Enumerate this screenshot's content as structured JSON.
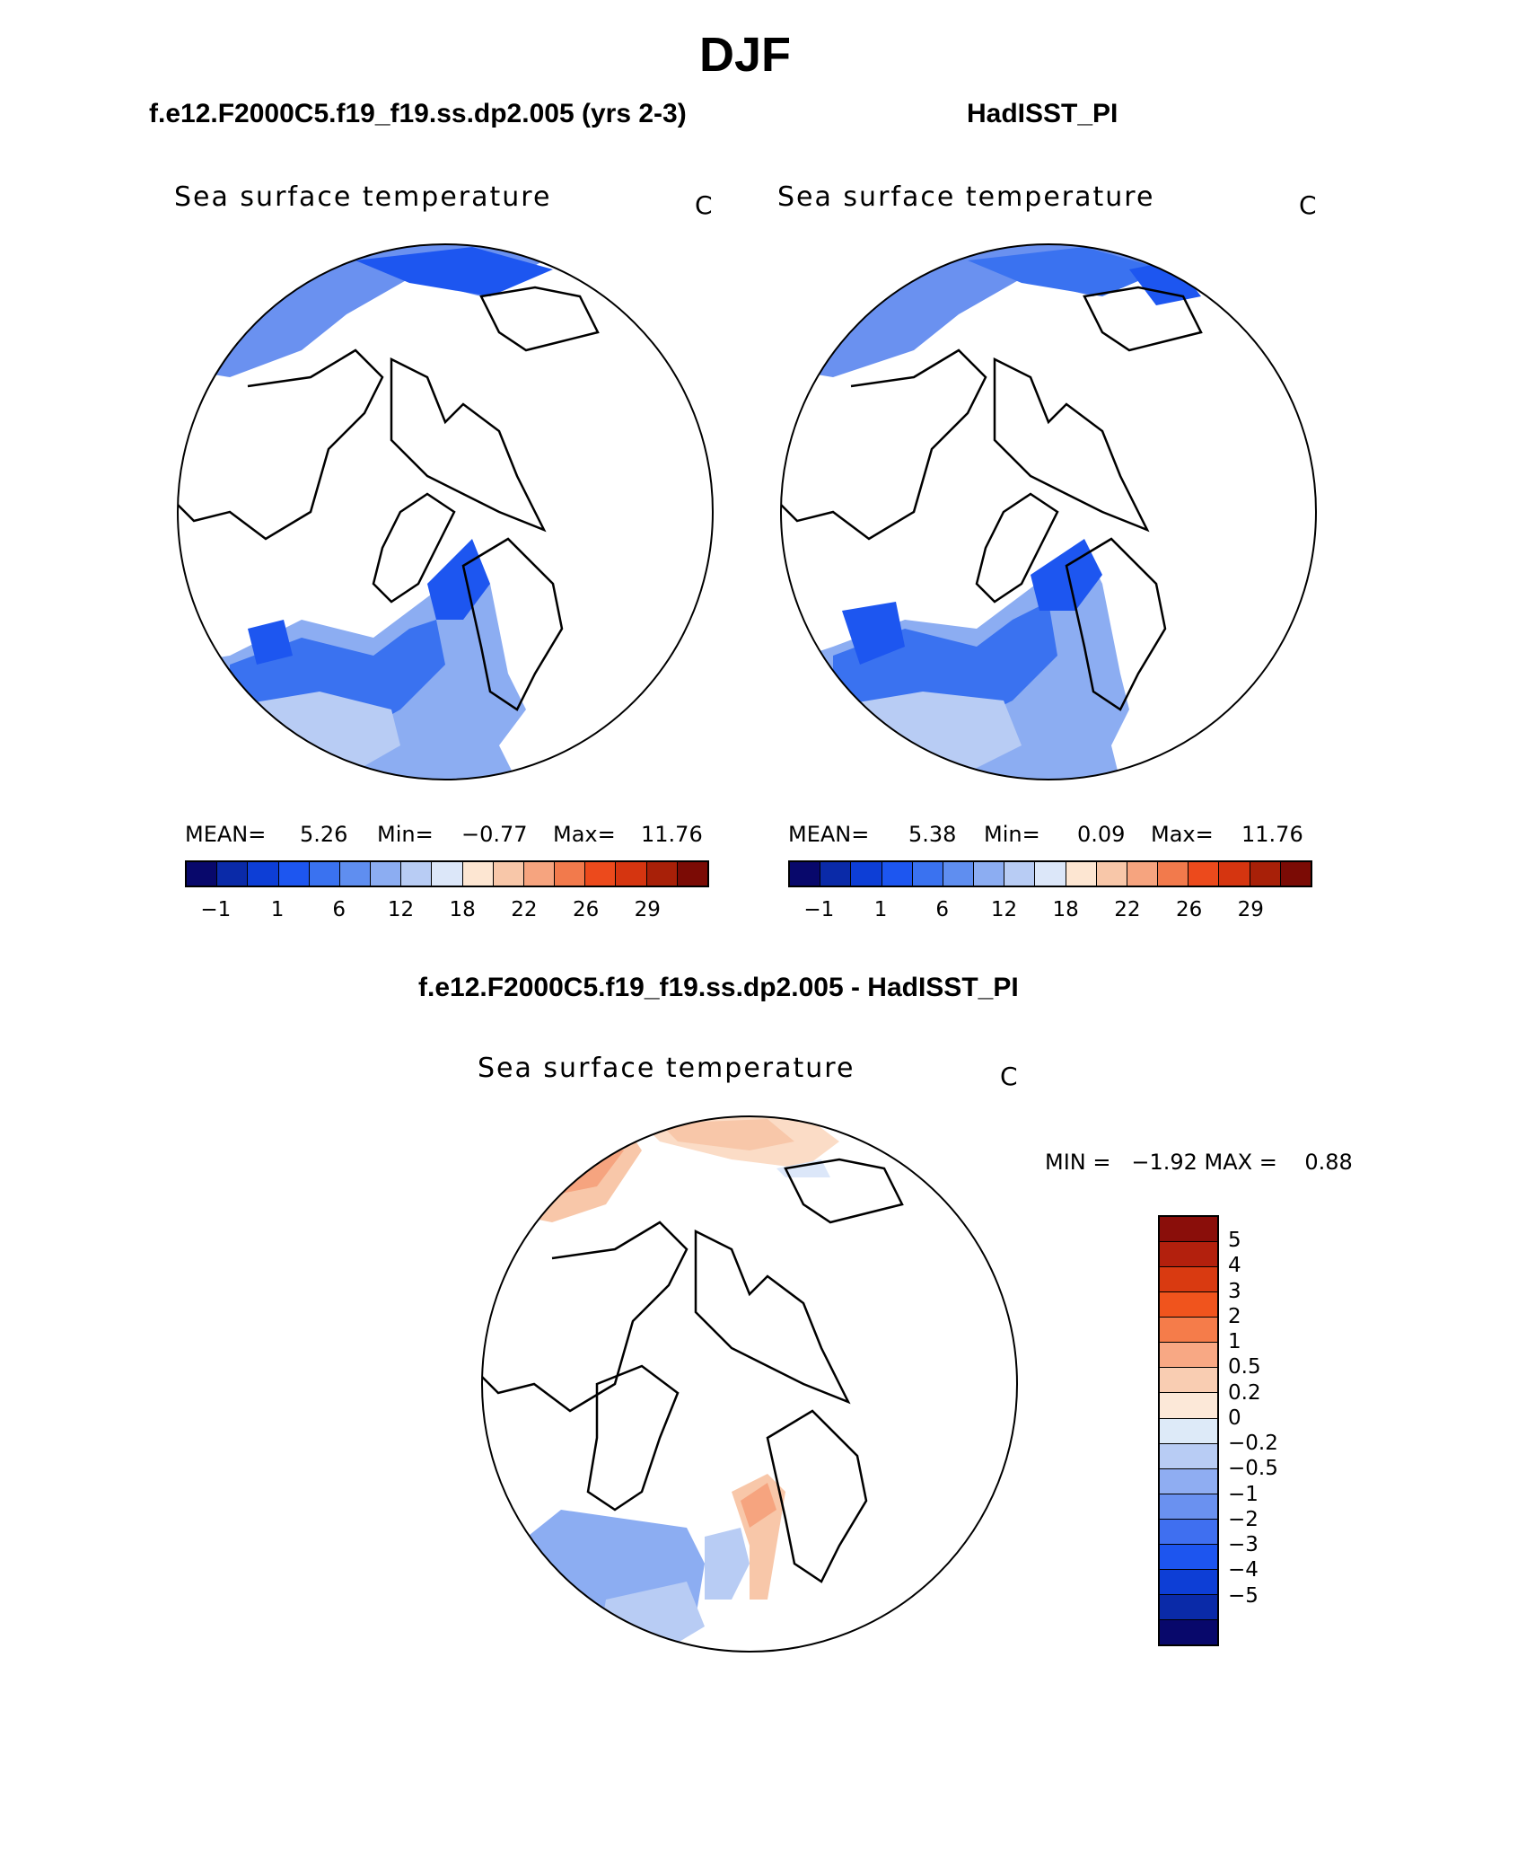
{
  "title": "DJF",
  "panels": [
    {
      "case_title": "f.e12.F2000C5.f19_f19.ss.dp2.005 (yrs 2-3)",
      "var_title": "Sea surface temperature",
      "units": "C",
      "stats": {
        "mean_label": "MEAN=",
        "mean": "5.26",
        "min_label": "Min=",
        "min": "−0.77",
        "max_label": "Max=",
        "max": "11.76"
      }
    },
    {
      "case_title": "HadISST_PI",
      "var_title": "Sea surface temperature",
      "units": "C",
      "stats": {
        "mean_label": "MEAN=",
        "mean": "5.38",
        "min_label": "Min=",
        "min": "0.09",
        "max_label": "Max=",
        "max": "11.76"
      }
    },
    {
      "case_title": "f.e12.F2000C5.f19_f19.ss.dp2.005 - HadISST_PI",
      "var_title": "Sea surface temperature",
      "units": "C",
      "stats": {
        "minmax": "MIN =   −1.92 MAX =    0.88"
      }
    }
  ],
  "colorbar_abs": {
    "colors": [
      "#08086b",
      "#0a2aa8",
      "#0d3ed6",
      "#1d56f0",
      "#3a72f0",
      "#5f8ef0",
      "#8cadf2",
      "#b8ccf4",
      "#dce7f9",
      "#fde6d2",
      "#f8c7a9",
      "#f6a47f",
      "#f27a4c",
      "#ec4a1c",
      "#d53510",
      "#a82008",
      "#7b0b05"
    ],
    "tick_labels": [
      "−1",
      "1",
      "6",
      "12",
      "18",
      "22",
      "26",
      "29"
    ]
  },
  "colorbar_diff": {
    "colors_top_to_bottom": [
      "#8a0e0a",
      "#b3200d",
      "#d93a11",
      "#f0541d",
      "#f57c4a",
      "#f8a884",
      "#f9cdb2",
      "#fce8d8",
      "#ddeaf8",
      "#b8ccf4",
      "#8fadf2",
      "#6a91f0",
      "#3f6ff0",
      "#1d55ef",
      "#0d3ed6",
      "#0a2aa8",
      "#08086b"
    ],
    "tick_labels_top_to_bottom": [
      "5",
      "4",
      "3",
      "2",
      "1",
      "0.5",
      "0.2",
      "0",
      "−0.2",
      "−0.5",
      "−1",
      "−2",
      "−3",
      "−4",
      "−5"
    ]
  }
}
